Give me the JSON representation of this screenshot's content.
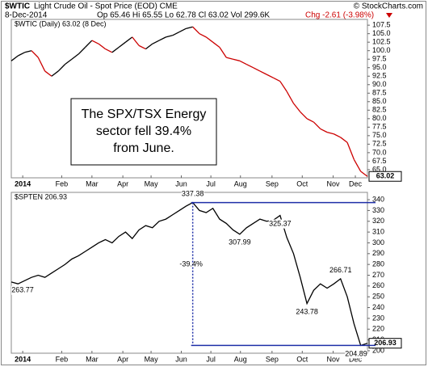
{
  "header": {
    "symbol": "$WTIC",
    "name": "Light Crude Oil - Spot Price (EOD) CME",
    "credit": "© StockCharts.com",
    "date": "8-Dec-2014",
    "stats": "Op 65.46 Hi 65.55 Lo 62.78 Cl 63.02 Vol 299.6K",
    "change": "Chg -2.61 (-3.98%)"
  },
  "chart_data": [
    {
      "type": "line",
      "legend": "$WTIC (Daily) 63.02 (8 Dec)",
      "color": "#000000",
      "down_color": "#cc0000",
      "annotation": [
        "The SPX/TSX Energy",
        "sector fell 39.4%",
        "from June."
      ],
      "values": [
        97,
        98.5,
        99.5,
        100,
        98,
        94,
        92.5,
        94,
        96,
        97.5,
        99,
        101,
        103,
        102,
        100.5,
        99.5,
        101,
        102.5,
        104,
        101.5,
        100.5,
        102,
        103,
        104,
        104.5,
        105.5,
        106.5,
        107,
        105,
        104,
        102.5,
        101,
        98,
        97.5,
        97,
        96,
        95,
        94,
        93,
        92,
        91,
        88,
        84.5,
        82,
        80,
        79,
        77,
        76,
        75.5,
        74.5,
        73,
        68,
        64.5,
        63.02
      ],
      "xlim": [
        0,
        53
      ],
      "xticks": [
        {
          "value": 1.7,
          "label": "2014"
        },
        {
          "value": 7.5,
          "label": "Feb"
        },
        {
          "value": 12,
          "label": "Mar"
        },
        {
          "value": 16.6,
          "label": "Apr"
        },
        {
          "value": 20.8,
          "label": "May"
        },
        {
          "value": 25.3,
          "label": "Jun"
        },
        {
          "value": 29.7,
          "label": "Jul"
        },
        {
          "value": 34.1,
          "label": "Aug"
        },
        {
          "value": 38.8,
          "label": "Sep"
        },
        {
          "value": 43.3,
          "label": "Oct"
        },
        {
          "value": 47.9,
          "label": "Nov"
        },
        {
          "value": 51.2,
          "label": "Dec"
        }
      ],
      "ylim": [
        62.6,
        109.2
      ],
      "yticks": [
        {
          "value": 65,
          "label": "65.0"
        },
        67.5,
        {
          "value": 70,
          "label": "70.0"
        },
        72.5,
        {
          "value": 75,
          "label": "75.0"
        },
        77.5,
        {
          "value": 80,
          "label": "80.0"
        },
        82.5,
        {
          "value": 85,
          "label": "85.0"
        },
        87.5,
        {
          "value": 90,
          "label": "90.0"
        },
        92.5,
        {
          "value": 95,
          "label": "95.0"
        },
        97.5,
        {
          "value": 100,
          "label": "100.0"
        },
        102.5,
        {
          "value": 105,
          "label": "105.0"
        },
        107.5
      ]
    },
    {
      "type": "line",
      "legend": "$SPTEN 206.93",
      "color": "#000000",
      "level_color": "#1f2fa8",
      "annotation": "-39.4%",
      "values": [
        263.77,
        262,
        265,
        268,
        270,
        268,
        272,
        276,
        280,
        285,
        288,
        292,
        296,
        300,
        303,
        300,
        306,
        310,
        304,
        312,
        316,
        314,
        320,
        322,
        326,
        330,
        334,
        337.38,
        330,
        328,
        332,
        322,
        318,
        312,
        307.99,
        314,
        318,
        322,
        320,
        321,
        325.37,
        305,
        290,
        268,
        243.78,
        256,
        262,
        258,
        262,
        266.71,
        250,
        225,
        204.89,
        206.93
      ],
      "value_labels": [
        263.77,
        null,
        null,
        null,
        null,
        null,
        null,
        null,
        null,
        null,
        null,
        null,
        null,
        null,
        null,
        null,
        null,
        null,
        null,
        null,
        null,
        null,
        null,
        null,
        null,
        null,
        null,
        337.38,
        null,
        null,
        null,
        null,
        null,
        null,
        307.99,
        null,
        null,
        null,
        null,
        null,
        325.37,
        null,
        null,
        null,
        243.78,
        null,
        null,
        null,
        null,
        266.71,
        null,
        null,
        204.89,
        206.93
      ],
      "xlim": [
        0,
        53
      ],
      "xticks": [
        {
          "value": 1.7,
          "label": "2014"
        },
        {
          "value": 7.5,
          "label": "Feb"
        },
        {
          "value": 12,
          "label": "Mar"
        },
        {
          "value": 16.6,
          "label": "Apr"
        },
        {
          "value": 20.8,
          "label": "May"
        },
        {
          "value": 25.3,
          "label": "Jun"
        },
        {
          "value": 29.7,
          "label": "Jul"
        },
        {
          "value": 34.1,
          "label": "Aug"
        },
        {
          "value": 38.8,
          "label": "Sep"
        },
        {
          "value": 43.3,
          "label": "Oct"
        },
        {
          "value": 47.9,
          "label": "Nov"
        },
        {
          "value": 51.2,
          "label": "Dec"
        }
      ],
      "ylim": [
        197.7,
        346.8
      ],
      "yticks": [
        200,
        210,
        220,
        230,
        240,
        250,
        260,
        270,
        280,
        290,
        300,
        310,
        320,
        330,
        340
      ]
    }
  ]
}
